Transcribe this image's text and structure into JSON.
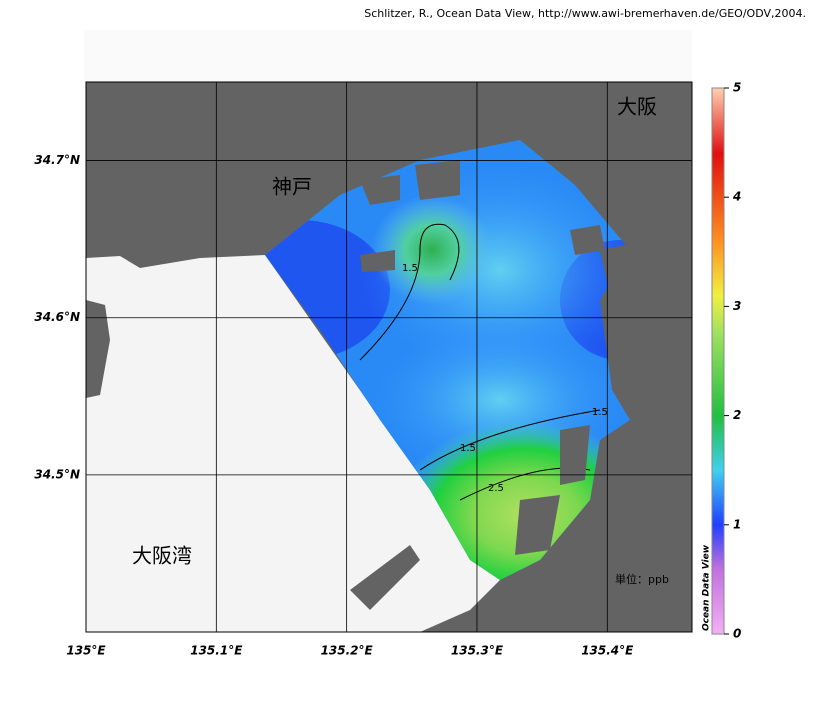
{
  "credit": "Schlitzer, R., Ocean Data View, http://www.awi-bremerhaven.de/GEO/ODV,2004.",
  "map": {
    "xlim": [
      135,
      135.465
    ],
    "ylim": [
      34.4,
      34.75
    ],
    "xticks": [
      {
        "value": 135,
        "label": "135°E"
      },
      {
        "value": 135.1,
        "label": "135.1°E"
      },
      {
        "value": 135.2,
        "label": "135.2°E"
      },
      {
        "value": 135.3,
        "label": "135.3°E"
      },
      {
        "value": 135.4,
        "label": "135.4°E"
      }
    ],
    "yticks": [
      {
        "value": 34.5,
        "label": "34.5°N"
      },
      {
        "value": 34.6,
        "label": "34.6°N"
      },
      {
        "value": 34.7,
        "label": "34.7°N"
      }
    ],
    "places": [
      "大阪",
      "神戸",
      "大阪湾"
    ],
    "unit": "単位：ppb",
    "contour_labels": [
      "1.5",
      "1.5",
      "1.5",
      "2.5"
    ]
  },
  "colorbar": {
    "lim": [
      0,
      5
    ],
    "ticks": [
      0,
      1,
      2,
      3,
      4,
      5
    ],
    "label": "Ocean Data View"
  }
}
